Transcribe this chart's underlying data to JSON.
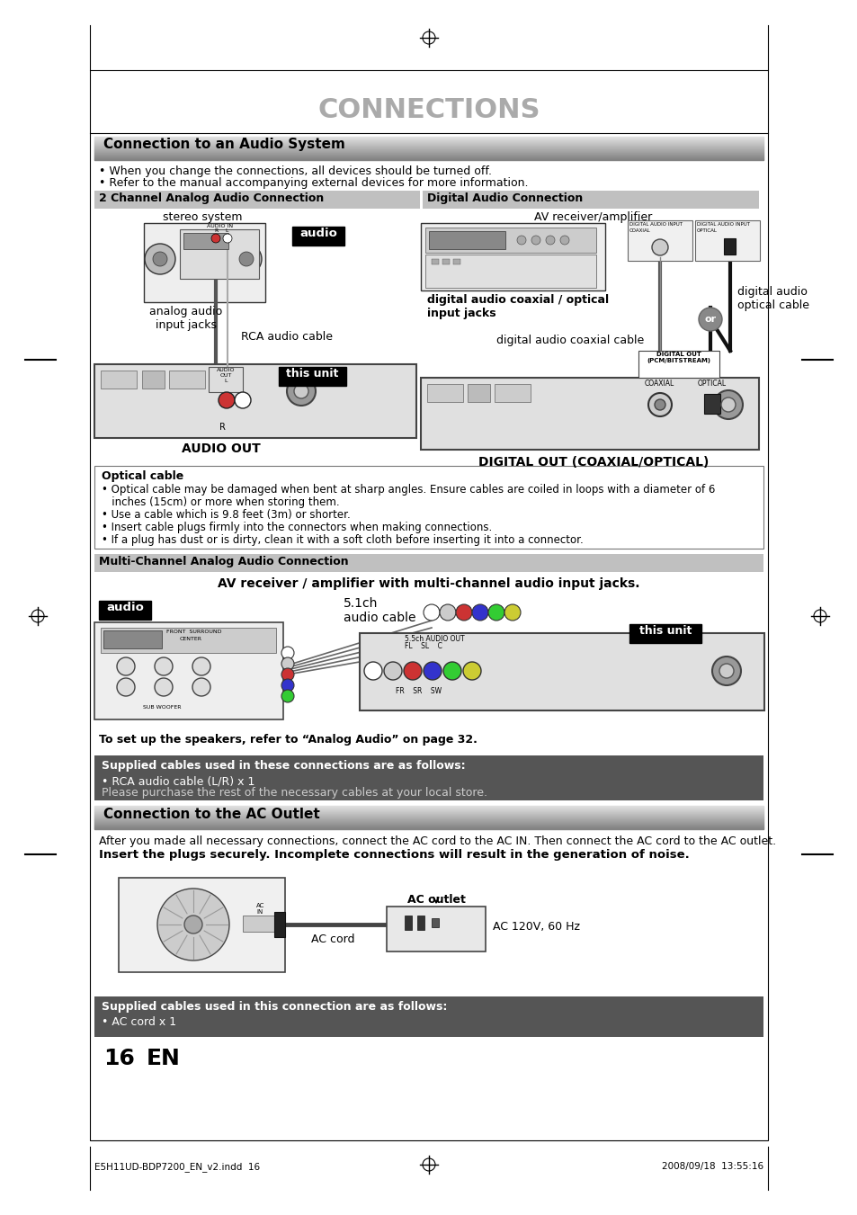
{
  "page_bg": "#ffffff",
  "page_title": "CONNECTIONS",
  "title_color": "#aaaaaa",
  "section1_header": "Connection to an Audio System",
  "bullet1": "• When you change the connections, all devices should be turned off.",
  "bullet2": "• Refer to the manual accompanying external devices for more information.",
  "sub1_title": "2 Channel Analog Audio Connection",
  "sub2_title": "Digital Audio Connection",
  "analog_label1": "stereo system",
  "analog_label2": "analog audio\ninput jacks",
  "analog_label3": "RCA audio cable",
  "digital_label1": "AV receiver/amplifier",
  "digital_label2": "digital audio coaxial / optical\ninput jacks",
  "digital_label3": "digital audio coaxial cable",
  "digital_label4": "digital audio\noptical cable",
  "digital_label5": "DIGITAL OUT (COAXIAL/OPTICAL)",
  "or_text": "or",
  "audio_out_label": "AUDIO OUT",
  "optical_box_title": "Optical cable",
  "optical_box_bullets": [
    "• Optical cable may be damaged when bent at sharp angles. Ensure cables are coiled in loops with a diameter of 6",
    "   inches (15cm) or more when storing them.",
    "• Use a cable which is 9.8 feet (3m) or shorter.",
    "• Insert cable plugs firmly into the connectors when making connections.",
    "• If a plug has dust or is dirty, clean it with a soft cloth before inserting it into a connector."
  ],
  "multi_section_title": "Multi-Channel Analog Audio Connection",
  "multi_section_subtitle": "AV receiver / amplifier with multi-channel audio input jacks.",
  "multi_cable_label": "5.1ch\naudio cable",
  "multi_speaker_note": "To set up the speakers, refer to “Analog Audio” on page 32.",
  "supplied_cables_title": "Supplied cables used in these connections are as follows:",
  "supplied_cables_items": [
    "• RCA audio cable (L/R) x 1",
    "Please purchase the rest of the necessary cables at your local store."
  ],
  "section2_header": "Connection to the AC Outlet",
  "section2_text1": "After you made all necessary connections, connect the AC cord to the AC IN. Then connect the AC cord to the AC outlet.",
  "section2_text2": "Insert the plugs securely. Incomplete connections will result in the generation of noise.",
  "ac_outlet_label": "AC outlet",
  "ac_cord_label": "AC cord",
  "ac_voltage": "AC 120V, 60 Hz",
  "supplied_cables2_title": "Supplied cables used in this connection are as follows:",
  "supplied_cables2_items": [
    "• AC cord x 1"
  ],
  "page_number": "16",
  "page_lang": "EN",
  "footer_left": "E5H11UD-BDP7200_EN_v2.indd  16",
  "footer_right": "2008/09/18  13:55:16"
}
